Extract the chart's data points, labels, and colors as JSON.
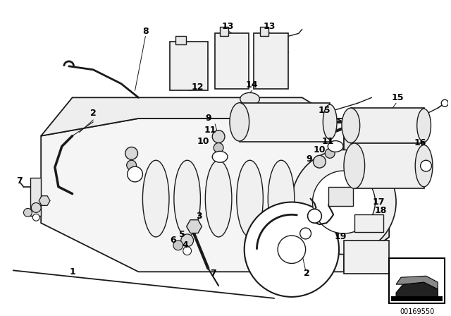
{
  "bg": "#ffffff",
  "lc": "#1a1a1a",
  "image_number": "00169550",
  "fig_w": 6.4,
  "fig_h": 4.48,
  "dpi": 100
}
